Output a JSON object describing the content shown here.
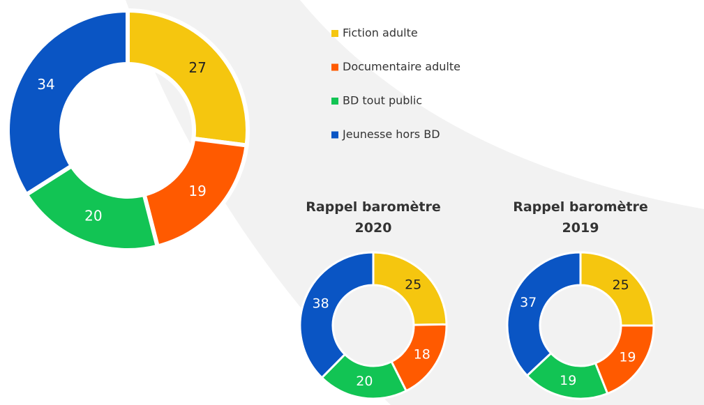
{
  "chart_data": [
    {
      "type": "donut",
      "categories": [
        "Fiction adulte",
        "Documentaire adulte",
        "BD tout public",
        "Jeunesse hors BD"
      ],
      "values": [
        27,
        19,
        20,
        34
      ],
      "colors": [
        "#f5c60f",
        "#ff5a00",
        "#12c454",
        "#0a55c4"
      ],
      "legend": "right"
    },
    {
      "type": "donut",
      "title": "Rappel baromètre 2020",
      "values": [
        25,
        18,
        20,
        38
      ],
      "colors": [
        "#f5c60f",
        "#ff5a00",
        "#12c454",
        "#0a55c4"
      ]
    },
    {
      "type": "donut",
      "title": "Rappel baromètre 2019",
      "values": [
        25,
        19,
        19,
        37
      ],
      "colors": [
        "#f5c60f",
        "#ff5a00",
        "#12c454",
        "#0a55c4"
      ]
    }
  ]
}
